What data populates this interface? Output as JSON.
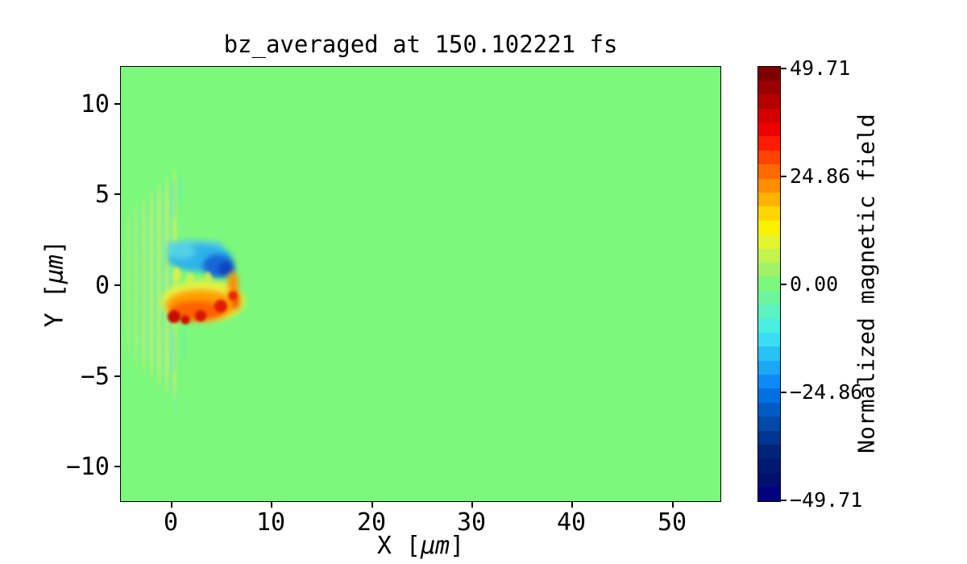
{
  "title": "bz_averaged at 150.102221 fs",
  "plot": {
    "background_color": "#7cf87c",
    "border_color": "#000000"
  },
  "axes": {
    "x": {
      "label_prefix": "X [",
      "label_unit": "μm",
      "label_suffix": "]",
      "tick_labels": [
        "0",
        "10",
        "20",
        "30",
        "40",
        "50"
      ]
    },
    "y": {
      "label_prefix": "Y [",
      "label_unit": "μm",
      "label_suffix": "]",
      "tick_labels": [
        "10",
        "5",
        "0",
        "−5",
        "−10"
      ]
    }
  },
  "colorbar": {
    "label": "Normalized magnetic field",
    "tick_labels": [
      "49.71",
      "24.86",
      "0.00",
      "−24.86",
      "−49.71"
    ],
    "border_color": "#000000",
    "bands": [
      "#7f0000",
      "#9a0000",
      "#b60000",
      "#d20000",
      "#ee0000",
      "#ff1c00",
      "#ff4300",
      "#ff6a00",
      "#ff8e00",
      "#ffb300",
      "#ffd700",
      "#fcf100",
      "#e3f42c",
      "#c4f24f",
      "#a0f168",
      "#7cf87c",
      "#6df59e",
      "#5cf2c1",
      "#4aefe2",
      "#38dff3",
      "#29c2f5",
      "#1ba6f6",
      "#0d8af5",
      "#0170e0",
      "#005cc4",
      "#0049a9",
      "#00368f",
      "#002478",
      "#001a74",
      "#000f70",
      "#000080"
    ]
  },
  "chart_data": {
    "type": "heatmap",
    "title": "bz_averaged at 150.102221 fs",
    "xlabel": "X [μm]",
    "ylabel": "Y [μm]",
    "x_range": [
      -5,
      55
    ],
    "y_range": [
      -12,
      12
    ],
    "x_ticks": [
      0,
      10,
      20,
      30,
      40,
      50
    ],
    "y_ticks": [
      10,
      5,
      0,
      -5,
      -10
    ],
    "grid": false,
    "legend_position": "none",
    "colorbar": {
      "label": "Normalized magnetic field",
      "vmin": -49.71,
      "vmax": 49.71,
      "ticks": [
        49.71,
        24.86,
        0.0,
        -24.86,
        -49.71
      ],
      "colormap": "discrete jet-like, ~31 bands, light green at 0"
    },
    "background_value": 0.0,
    "features": [
      {
        "name": "laser_wavefront_ripples",
        "description": "alternating weak positive (yellow-green) / negative (teal) vertical fringes, fringe spacing ~0.8 μm, tallest near x=0",
        "x_extent": [
          -5,
          0.5
        ],
        "y_extent": [
          -5.5,
          5.5
        ],
        "amplitude": "approx ±8"
      },
      {
        "name": "negative_field_lobe",
        "description": "blue lobe just above the y=0 axis; darkest blue core at its right end near x=5.5, y=1",
        "x_extent": [
          0,
          6.5
        ],
        "y_extent": [
          0.3,
          2.8
        ],
        "peak_value": -45
      },
      {
        "name": "positive_field_lobe",
        "description": "yellow/orange/red lobe just below the y=0 axis with several dark-red cores along its lower edge (x≈0.3, 2, 4, 5.8)",
        "x_extent": [
          0,
          7
        ],
        "y_extent": [
          -3.5,
          0.2
        ],
        "peak_value": 48
      }
    ]
  }
}
